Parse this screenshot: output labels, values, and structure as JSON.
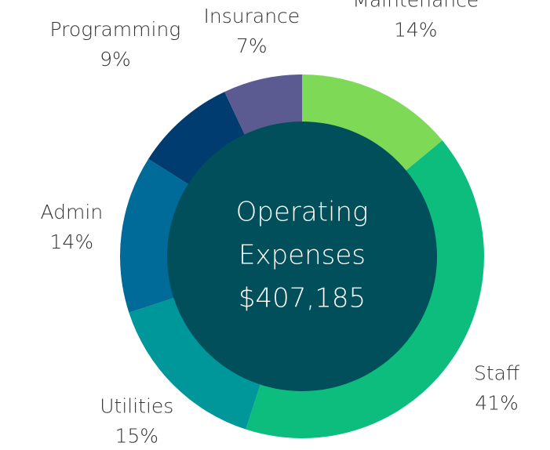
{
  "chart_data": {
    "type": "donut",
    "center_label": [
      "Operating",
      "Expenses",
      "$407,185"
    ],
    "categories": [
      "Maintenance",
      "Staff",
      "Utilities",
      "Admin",
      "Programming",
      "Insurance"
    ],
    "values": [
      14,
      41,
      15,
      14,
      9,
      7
    ],
    "value_labels": [
      "14%",
      "41%",
      "15%",
      "14%",
      "9%",
      "7%"
    ],
    "colors": [
      "#7ed957",
      "#0dbd7d",
      "#00979b",
      "#006a98",
      "#003c70",
      "#5b5b91"
    ],
    "center_color": "#004f5b"
  }
}
